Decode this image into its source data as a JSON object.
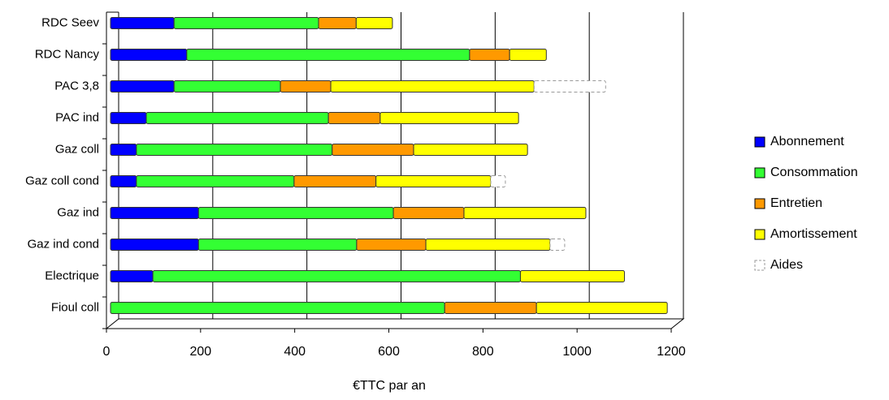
{
  "chart_data": {
    "type": "stacked-bar-horizontal",
    "x_label": "€TTC par an",
    "categories": [
      "Fioul coll",
      "Electrique",
      "Gaz ind cond",
      "Gaz ind",
      "Gaz coll cond",
      "Gaz coll",
      "PAC ind",
      "PAC 3,8",
      "RDC Nancy",
      "RDC Seev"
    ],
    "series": [
      {
        "name": "Abonnement",
        "color": "#0000ff",
        "values": [
          0,
          90,
          187,
          187,
          55,
          55,
          76,
          135,
          162,
          135
        ]
      },
      {
        "name": "Consommation",
        "color": "#33ff33",
        "values": [
          710,
          781,
          336,
          414,
          335,
          416,
          387,
          226,
          601,
          307
        ]
      },
      {
        "name": "Entretien",
        "color": "#ff9900",
        "values": [
          195,
          0,
          147,
          150,
          174,
          173,
          110,
          107,
          85,
          80
        ]
      },
      {
        "name": "Amortissement",
        "color": "#ffff00",
        "values": [
          278,
          221,
          264,
          259,
          244,
          242,
          294,
          432,
          78,
          77
        ]
      },
      {
        "name": "Aides",
        "color": "#ffffff",
        "values": [
          0,
          0,
          31,
          0,
          31,
          0,
          0,
          152,
          0,
          0
        ]
      }
    ],
    "xlim": [
      0,
      1200
    ],
    "xticks": [
      0,
      200,
      400,
      600,
      800,
      1000,
      1200
    ],
    "grid": true,
    "legend": "right"
  }
}
